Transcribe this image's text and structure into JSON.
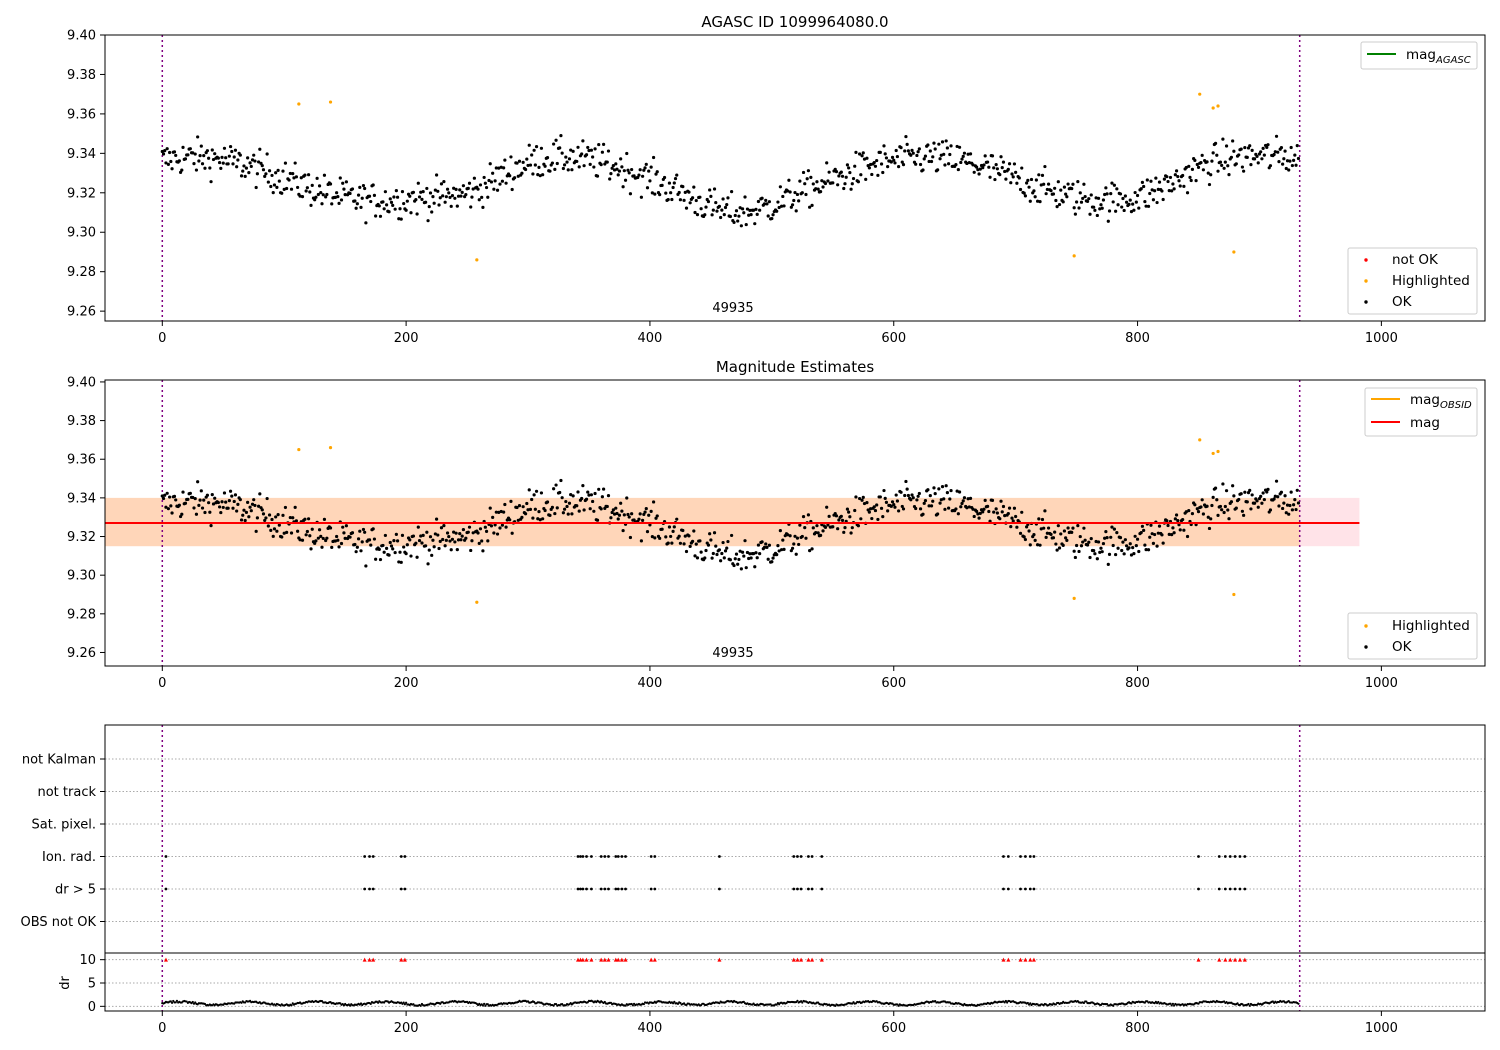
{
  "chart_data": [
    {
      "type": "scatter",
      "title": "AGASC ID 1099964080.0",
      "xlim": [
        -47,
        1085
      ],
      "ylim": [
        9.255,
        9.4
      ],
      "xticks": [
        0,
        200,
        400,
        600,
        800,
        1000
      ],
      "yticks": [
        9.26,
        9.28,
        9.3,
        9.32,
        9.34,
        9.36,
        9.38,
        9.4
      ],
      "obsid_label": "49935",
      "obs_boundaries": [
        0,
        933
      ],
      "legend_line": {
        "label": "mag",
        "sub": "AGASC",
        "color": "#008000"
      },
      "legend_points": [
        {
          "label": "not OK",
          "color": "#ff0000"
        },
        {
          "label": "Highlighted",
          "color": "#ffa500"
        },
        {
          "label": "OK",
          "color": "#000000"
        }
      ],
      "highlighted": [
        [
          112,
          9.365
        ],
        [
          138,
          9.366
        ],
        [
          258,
          9.286
        ],
        [
          748,
          9.288
        ],
        [
          851,
          9.37
        ],
        [
          862,
          9.363
        ],
        [
          866,
          9.364
        ],
        [
          879,
          9.29
        ]
      ]
    },
    {
      "type": "scatter",
      "title": "Magnitude Estimates",
      "xlim": [
        -47,
        1085
      ],
      "ylim": [
        9.253,
        9.401
      ],
      "xticks": [
        0,
        200,
        400,
        600,
        800,
        1000
      ],
      "yticks": [
        9.26,
        9.28,
        9.3,
        9.32,
        9.34,
        9.36,
        9.38,
        9.4
      ],
      "obsid_label": "49935",
      "obs_boundaries": [
        0,
        933
      ],
      "mag": 9.327,
      "mag_band": [
        9.315,
        9.34
      ],
      "band_x_end": 982,
      "legend_lines": [
        {
          "label": "mag",
          "sub": "OBSID",
          "color": "#ffa500"
        },
        {
          "label": "mag",
          "color": "#ff0000"
        }
      ],
      "legend_points": [
        {
          "label": "Highlighted",
          "color": "#ffa500"
        },
        {
          "label": "OK",
          "color": "#000000"
        }
      ],
      "highlighted": [
        [
          112,
          9.365
        ],
        [
          138,
          9.366
        ],
        [
          258,
          9.286
        ],
        [
          748,
          9.288
        ],
        [
          851,
          9.37
        ],
        [
          862,
          9.363
        ],
        [
          866,
          9.364
        ],
        [
          879,
          9.29
        ]
      ]
    },
    {
      "type": "scatter",
      "xlim": [
        -47,
        1085
      ],
      "flag_rows": [
        "not Kalman",
        "not track",
        "Sat. pixel.",
        "Ion. rad.",
        "dr > 5",
        "OBS not OK"
      ],
      "flag_x": [
        3,
        166,
        170,
        173,
        196,
        199,
        341,
        343,
        345,
        348,
        352,
        360,
        363,
        366,
        372,
        374,
        377,
        380,
        401,
        404,
        457,
        518,
        521,
        524,
        530,
        533,
        541,
        690,
        694,
        704,
        708,
        712,
        715,
        850,
        867,
        872,
        876,
        880,
        884,
        888
      ],
      "flag_rows_marked": [
        "Ion. rad.",
        "dr > 5"
      ],
      "dr_ylabel": "dr",
      "dr_yticks": [
        0,
        5,
        10
      ],
      "dr_ylim": [
        -1,
        11
      ],
      "dr_marker_value": 10
    }
  ]
}
